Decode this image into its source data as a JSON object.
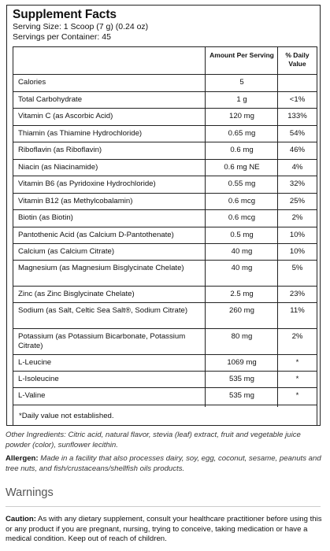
{
  "facts": {
    "title": "Supplement Facts",
    "serving_size": "Serving Size: 1 Scoop (7 g) (0.24 oz)",
    "servings_per_container": "Servings per Container: 45",
    "col_amount": "Amount Per Serving",
    "col_dv": "% Daily Value",
    "rows": [
      {
        "name": "Calories",
        "amount": "5",
        "dv": ""
      },
      {
        "name": "Total Carbohydrate",
        "amount": "1 g",
        "dv": "<1%"
      },
      {
        "name": "Vitamin C (as Ascorbic Acid)",
        "amount": "120 mg",
        "dv": "133%"
      },
      {
        "name": "Thiamin (as Thiamine Hydrochloride)",
        "amount": "0.65 mg",
        "dv": "54%"
      },
      {
        "name": "Riboflavin (as Riboflavin)",
        "amount": "0.6 mg",
        "dv": "46%"
      },
      {
        "name": "Niacin (as Niacinamide)",
        "amount": "0.6 mg NE",
        "dv": "4%"
      },
      {
        "name": "Vitamin B6 (as Pyridoxine Hydrochloride)",
        "amount": "0.55 mg",
        "dv": "32%"
      },
      {
        "name": "Vitamin B12 (as Methylcobalamin)",
        "amount": "0.6 mcg",
        "dv": "25%"
      },
      {
        "name": "Biotin (as Biotin)",
        "amount": "0.6 mcg",
        "dv": "2%"
      },
      {
        "name": "Pantothenic Acid (as Calcium D-Pantothenate)",
        "amount": "0.5 mg",
        "dv": "10%"
      },
      {
        "name": "Calcium (as Calcium Citrate)",
        "amount": "40 mg",
        "dv": "10%"
      },
      {
        "name": "Magnesium (as Magnesium Bisglycinate Chelate)",
        "amount": "40 mg",
        "dv": "5%"
      },
      {
        "name": "Zinc (as Zinc Bisglycinate Chelate)",
        "amount": "2.5 mg",
        "dv": "23%"
      },
      {
        "name": "Sodium (as Salt, Celtic Sea Salt®, Sodium Citrate)",
        "amount": "260 mg",
        "dv": "11%"
      },
      {
        "name": "Potassium (as Potassium Bicarbonate, Potassium Citrate)",
        "amount": "80 mg",
        "dv": "2%"
      },
      {
        "name": "L-Leucine",
        "amount": "1069 mg",
        "dv": "*"
      },
      {
        "name": "L-Isoleucine",
        "amount": "535 mg",
        "dv": "*"
      },
      {
        "name": "L-Valine",
        "amount": "535 mg",
        "dv": "*"
      }
    ],
    "footnote": "*Daily value not established."
  },
  "other_ingredients": {
    "label": "Other Ingredients:",
    "text": "Citric acid, natural flavor, stevia (leaf) extract, fruit and vegetable juice powder (color), sunflower lecithin."
  },
  "allergen": {
    "label": "Allergen:",
    "text": "Made in a facility that also processes dairy, soy, egg, coconut, sesame, peanuts and tree nuts, and fish/crustaceans/shellfish oils products."
  },
  "warnings": {
    "heading": "Warnings",
    "caution_label": "Caution:",
    "caution_text": "As with any dietary supplement, consult your healthcare practitioner before using this or any product if you are pregnant, nursing, trying to conceive, taking medication or have a medical condition. Keep out of reach of children."
  }
}
